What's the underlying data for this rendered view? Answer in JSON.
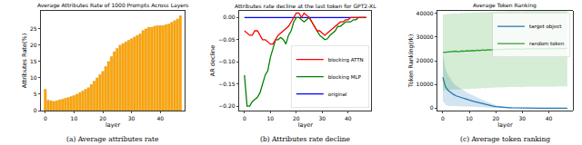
{
  "chart_data": [
    {
      "type": "bar",
      "title": "Average Attributes Rate of 1000 Prompts Across Layers",
      "caption": "(a) Average attributes rate",
      "x_label": "layer",
      "y_label": "Attributes Rate(%)",
      "x": [
        0,
        1,
        2,
        3,
        4,
        5,
        6,
        7,
        8,
        9,
        10,
        11,
        12,
        13,
        14,
        15,
        16,
        17,
        18,
        19,
        20,
        21,
        22,
        23,
        24,
        25,
        26,
        27,
        28,
        29,
        30,
        31,
        32,
        33,
        34,
        35,
        36,
        37,
        38,
        39,
        40,
        41,
        42,
        43,
        44,
        45,
        46,
        47
      ],
      "values": [
        6.5,
        3.2,
        3.0,
        2.8,
        3.0,
        3.3,
        3.5,
        3.8,
        4.0,
        4.3,
        4.6,
        5.0,
        5.5,
        6.0,
        6.5,
        7.0,
        8.0,
        9.0,
        10.0,
        11.0,
        12.0,
        13.5,
        15.0,
        16.5,
        18.0,
        19.0,
        20.0,
        20.5,
        21.0,
        21.5,
        22.0,
        22.5,
        23.0,
        23.5,
        24.5,
        25.0,
        25.5,
        25.5,
        25.8,
        26.0,
        26.0,
        26.0,
        26.3,
        26.5,
        27.0,
        27.5,
        28.0,
        29.0
      ],
      "color": "#ffa500",
      "xlim": [
        -1.5,
        48.5
      ],
      "ylim": [
        0,
        30.5
      ],
      "xticks": [
        0,
        10,
        20,
        30,
        40
      ],
      "yticks": [
        0,
        5,
        10,
        15,
        20,
        25
      ],
      "grid": false
    },
    {
      "type": "line",
      "title": "Attributes rate decline at the last token for GPT2-XL",
      "caption": "(b) Attributes rate decline",
      "x_label": "layer",
      "y_label": "AR decline",
      "x": [
        0,
        1,
        2,
        3,
        4,
        5,
        6,
        7,
        8,
        9,
        10,
        11,
        12,
        13,
        14,
        15,
        16,
        17,
        18,
        19,
        20,
        21,
        22,
        23,
        24,
        25,
        26,
        27,
        28,
        29,
        30,
        31,
        32,
        33,
        34,
        35,
        36,
        37,
        38,
        39,
        40,
        41,
        42,
        43,
        44,
        45,
        46,
        47
      ],
      "series": [
        {
          "name": "original",
          "color": "#0000ff",
          "values": [
            0,
            0,
            0,
            0,
            0,
            0,
            0,
            0,
            0,
            0,
            0,
            0,
            0,
            0,
            0,
            0,
            0,
            0,
            0,
            0,
            0,
            0,
            0,
            0,
            0,
            0,
            0,
            0,
            0,
            0,
            0,
            0,
            0,
            0,
            0,
            0,
            0,
            0,
            0,
            0,
            0,
            0,
            0,
            0,
            0,
            0,
            0,
            0
          ]
        },
        {
          "name": "blocking MLP",
          "color": "#008000",
          "values": [
            -0.13,
            -0.2,
            -0.2,
            -0.19,
            -0.185,
            -0.18,
            -0.17,
            -0.15,
            -0.13,
            -0.12,
            -0.09,
            -0.07,
            -0.05,
            -0.05,
            -0.045,
            -0.05,
            -0.06,
            -0.04,
            -0.03,
            -0.01,
            0.0,
            0.0,
            -0.005,
            -0.01,
            -0.005,
            0.0,
            -0.01,
            -0.02,
            -0.03,
            -0.04,
            -0.045,
            -0.05,
            -0.048,
            -0.04,
            -0.035,
            -0.03,
            -0.02,
            -0.02,
            -0.015,
            -0.01,
            -0.01,
            -0.01,
            -0.005,
            -0.005,
            0,
            0,
            0,
            0
          ]
        },
        {
          "name": "blocking ATTN",
          "color": "#ff0000",
          "values": [
            -0.03,
            -0.035,
            -0.04,
            -0.04,
            -0.03,
            -0.03,
            -0.04,
            -0.05,
            -0.05,
            -0.055,
            -0.06,
            -0.06,
            -0.05,
            -0.04,
            -0.035,
            -0.03,
            -0.025,
            -0.02,
            -0.01,
            0.0,
            0.01,
            0.01,
            0.0,
            0.01,
            0.005,
            0.0,
            -0.01,
            -0.02,
            -0.03,
            -0.03,
            -0.035,
            -0.04,
            -0.035,
            -0.03,
            -0.025,
            -0.02,
            -0.015,
            -0.01,
            -0.01,
            -0.005,
            -0.005,
            0,
            0,
            0,
            0,
            0,
            0,
            0
          ]
        }
      ],
      "xlim": [
        -2,
        49
      ],
      "ylim": [
        -0.21,
        0.015
      ],
      "xticks": [
        0,
        10,
        20,
        30,
        40
      ],
      "yticks": [
        {
          "value": 0,
          "label": "0.00"
        },
        {
          "value": -0.05,
          "label": "−0.05"
        },
        {
          "value": -0.1,
          "label": "−0.10"
        },
        {
          "value": -0.15,
          "label": "−0.15"
        },
        {
          "value": -0.2,
          "label": "−0.20"
        }
      ],
      "legend": "lower right",
      "grid": false
    },
    {
      "type": "line",
      "title": "Average Token Ranking",
      "caption": "(c) Average token ranking",
      "x_label": "layer",
      "y_label": "Token Ranking(rk)",
      "x": [
        0,
        1,
        2,
        3,
        4,
        5,
        6,
        7,
        8,
        9,
        10,
        11,
        12,
        13,
        14,
        15,
        16,
        17,
        18,
        19,
        20,
        21,
        22,
        23,
        24,
        25,
        26,
        27,
        28,
        29,
        30,
        31,
        32,
        33,
        34,
        35,
        36,
        37,
        38,
        39,
        40,
        41,
        42,
        43,
        44,
        45,
        46,
        47
      ],
      "series": [
        {
          "name": "target object",
          "color": "#1f77b4",
          "values": [
            13000,
            9000,
            7500,
            6500,
            5800,
            5200,
            4800,
            4400,
            4000,
            3700,
            3400,
            3100,
            2800,
            2500,
            2200,
            1900,
            1600,
            1300,
            1100,
            900,
            700,
            550,
            450,
            350,
            280,
            220,
            170,
            130,
            100,
            80,
            60,
            50,
            40,
            35,
            30,
            25,
            20,
            18,
            16,
            14,
            12,
            11,
            10,
            9,
            8,
            7,
            6,
            5
          ],
          "lower": [
            3000,
            1500,
            1000,
            1000,
            1100,
            900,
            800,
            800,
            700,
            700,
            700,
            600,
            600,
            500,
            400,
            300,
            200,
            100,
            100,
            100,
            100,
            50,
            50,
            50,
            40,
            30,
            20,
            10,
            10,
            10,
            10,
            10,
            5,
            5,
            5,
            5,
            2,
            2,
            2,
            2,
            2,
            2,
            2,
            2,
            1,
            1,
            1,
            1
          ],
          "upper": [
            23000,
            16500,
            14000,
            12000,
            10500,
            9500,
            8800,
            8000,
            7300,
            6700,
            6100,
            5600,
            5000,
            4500,
            4000,
            3500,
            3000,
            2500,
            2100,
            1700,
            1300,
            1050,
            850,
            650,
            520,
            410,
            320,
            250,
            190,
            150,
            110,
            90,
            75,
            65,
            55,
            45,
            38,
            34,
            30,
            26,
            22,
            20,
            18,
            16,
            15,
            13,
            11,
            9
          ]
        },
        {
          "name": "random token",
          "color": "#2ca02c",
          "values": [
            23500,
            23600,
            23800,
            23700,
            23900,
            24000,
            23800,
            24100,
            24000,
            24200,
            24100,
            24300,
            24200,
            24400,
            24300,
            24500,
            24400,
            24600,
            24500,
            24700,
            24600,
            24800,
            24700,
            24800,
            24900,
            24800,
            25000,
            24900,
            25000,
            24800,
            24900,
            25000,
            24900,
            25100,
            25000,
            24900,
            25000,
            25100,
            25000,
            24900,
            25000,
            25100,
            25000,
            25200,
            25100,
            25000,
            25100,
            25200
          ],
          "lower": [
            7500,
            7600,
            7800,
            7700,
            7900,
            8000,
            7800,
            8100,
            8000,
            8200,
            8100,
            8300,
            8200,
            8400,
            8300,
            8500,
            8400,
            8600,
            8500,
            8700,
            8600,
            8800,
            8700,
            8800,
            8900,
            8800,
            9000,
            8900,
            9000,
            8800,
            8900,
            9000,
            8900,
            9100,
            9000,
            8900,
            9000,
            9100,
            9000,
            8900,
            9000,
            9100,
            9000,
            9200,
            9100,
            9000,
            9100,
            9200
          ],
          "upper": [
            39500,
            39600,
            39800,
            39700,
            39900,
            40000,
            39800,
            40100,
            40000,
            40200,
            40100,
            40300,
            40200,
            40400,
            40300,
            40500,
            40400,
            40600,
            40500,
            40700,
            40600,
            40800,
            40700,
            40800,
            40900,
            40800,
            41000,
            40900,
            41000,
            40800,
            40900,
            41000,
            40900,
            41100,
            41000,
            40900,
            41000,
            41100,
            41000,
            40900,
            41000,
            41100,
            41000,
            41200,
            41100,
            41000,
            41100,
            41200
          ]
        }
      ],
      "xlim": [
        -2,
        49
      ],
      "ylim": [
        -1000,
        41000
      ],
      "xticks": [
        0,
        10,
        20,
        30,
        40
      ],
      "yticks": [
        0,
        10000,
        20000,
        30000,
        40000
      ],
      "legend": "upper right",
      "grid": false
    }
  ]
}
